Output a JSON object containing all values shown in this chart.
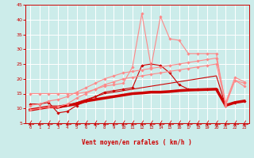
{
  "bg_color": "#ccecea",
  "grid_color": "#ffffff",
  "xlabel": "Vent moyen/en rafales ( km/h )",
  "xlabel_color": "#cc0000",
  "tick_color": "#cc0000",
  "xlim": [
    -0.5,
    23.5
  ],
  "ylim": [
    5,
    45
  ],
  "yticks": [
    5,
    10,
    15,
    20,
    25,
    30,
    35,
    40,
    45
  ],
  "xticks": [
    0,
    1,
    2,
    3,
    4,
    5,
    6,
    7,
    8,
    9,
    10,
    11,
    12,
    13,
    14,
    15,
    16,
    17,
    18,
    19,
    20,
    21,
    22,
    23
  ],
  "series": [
    {
      "x": [
        0,
        1,
        2,
        3,
        4,
        5,
        6,
        7,
        8,
        9,
        10,
        11,
        12,
        13,
        14,
        15,
        16,
        17,
        18,
        19,
        20,
        21,
        22,
        23
      ],
      "y": [
        9.5,
        10.0,
        10.5,
        10.5,
        11.0,
        11.5,
        12.5,
        13.0,
        13.5,
        14.0,
        14.5,
        15.0,
        15.2,
        15.5,
        15.5,
        15.7,
        16.0,
        16.2,
        16.3,
        16.4,
        16.5,
        11.0,
        12.0,
        12.5
      ],
      "color": "#cc0000",
      "lw": 2.5,
      "marker": null,
      "markersize": 0
    },
    {
      "x": [
        0,
        1,
        2,
        3,
        4,
        5,
        6,
        7,
        8,
        9,
        10,
        11,
        12,
        13,
        14,
        15,
        16,
        17,
        18,
        19,
        20,
        21,
        22,
        23
      ],
      "y": [
        9.5,
        10.0,
        10.5,
        10.0,
        11.0,
        12.0,
        13.0,
        14.0,
        15.0,
        15.5,
        16.0,
        16.5,
        17.0,
        17.5,
        18.0,
        18.5,
        19.0,
        19.5,
        20.0,
        20.5,
        21.0,
        11.0,
        12.0,
        12.5
      ],
      "color": "#cc0000",
      "lw": 0.8,
      "marker": null,
      "markersize": 0
    },
    {
      "x": [
        0,
        1,
        2,
        3,
        4,
        5,
        6,
        7,
        8,
        9,
        10,
        11,
        12,
        13,
        14,
        15,
        16,
        17,
        18,
        19,
        20,
        21,
        22,
        23
      ],
      "y": [
        11.5,
        11.5,
        12.0,
        8.5,
        9.0,
        11.0,
        12.5,
        14.0,
        15.5,
        16.0,
        16.5,
        17.0,
        24.5,
        25.0,
        24.5,
        22.0,
        18.0,
        16.5,
        16.5,
        16.5,
        16.5,
        11.0,
        12.0,
        12.5
      ],
      "color": "#cc0000",
      "lw": 0.8,
      "marker": "D",
      "markersize": 1.8
    },
    {
      "x": [
        0,
        1,
        2,
        3,
        4,
        5,
        6,
        7,
        8,
        9,
        10,
        11,
        12,
        13,
        14,
        15,
        16,
        17,
        18,
        19,
        20,
        21,
        22,
        23
      ],
      "y": [
        15.0,
        15.0,
        15.0,
        15.0,
        15.0,
        15.0,
        15.5,
        16.5,
        17.5,
        18.0,
        18.5,
        24.0,
        42.0,
        24.0,
        41.0,
        33.5,
        33.0,
        28.5,
        28.5,
        28.5,
        28.5,
        11.0,
        19.5,
        17.5
      ],
      "color": "#ff8888",
      "lw": 0.8,
      "marker": "D",
      "markersize": 1.8
    },
    {
      "x": [
        0,
        1,
        2,
        3,
        4,
        5,
        6,
        7,
        8,
        9,
        10,
        11,
        12,
        13,
        14,
        15,
        16,
        17,
        18,
        19,
        20,
        21,
        22,
        23
      ],
      "y": [
        11.0,
        11.5,
        12.5,
        13.0,
        14.0,
        15.5,
        17.0,
        18.5,
        20.0,
        21.0,
        22.0,
        22.5,
        23.0,
        23.5,
        24.0,
        24.5,
        25.0,
        25.5,
        26.0,
        26.5,
        27.0,
        12.0,
        20.5,
        19.0
      ],
      "color": "#ff8888",
      "lw": 0.8,
      "marker": "D",
      "markersize": 1.8
    },
    {
      "x": [
        0,
        1,
        2,
        3,
        4,
        5,
        6,
        7,
        8,
        9,
        10,
        11,
        12,
        13,
        14,
        15,
        16,
        17,
        18,
        19,
        20,
        21,
        22,
        23
      ],
      "y": [
        9.5,
        10.0,
        10.5,
        10.5,
        11.5,
        13.5,
        15.0,
        16.5,
        18.0,
        19.0,
        20.0,
        20.5,
        21.0,
        21.5,
        22.0,
        22.5,
        23.0,
        23.5,
        24.0,
        24.5,
        25.0,
        11.5,
        19.5,
        18.5
      ],
      "color": "#ff8888",
      "lw": 0.8,
      "marker": "D",
      "markersize": 1.8
    }
  ],
  "arrow_color": "#cc0000",
  "spine_color": "#cc0000"
}
